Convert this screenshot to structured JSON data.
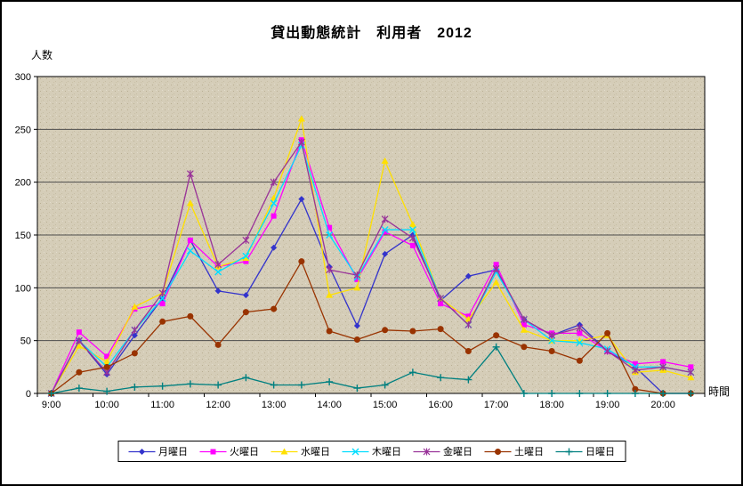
{
  "chart_data": {
    "type": "line",
    "title": "貸出動態統計　利用者　2012",
    "ylabel": "人数",
    "xlabel": "時間",
    "ylim": [
      0,
      300
    ],
    "y_tick_step": 50,
    "x_label_every": 2,
    "grid": "horizontal",
    "legend_position": "bottom",
    "plot_bg": "#d5cdb8",
    "categories": [
      "9:00",
      "9:30",
      "10:00",
      "10:30",
      "11:00",
      "11:30",
      "12:00",
      "12:30",
      "13:00",
      "13:30",
      "14:00",
      "14:30",
      "15:00",
      "15:30",
      "16:00",
      "16:30",
      "17:00",
      "17:30",
      "18:00",
      "18:30",
      "19:00",
      "19:30",
      "20:00",
      "20:30"
    ],
    "series": [
      {
        "name": "月曜日",
        "color": "#3333CC",
        "marker": "diamond",
        "values": [
          0,
          50,
          18,
          55,
          90,
          145,
          97,
          93,
          138,
          184,
          120,
          64,
          132,
          150,
          88,
          111,
          117,
          70,
          55,
          65,
          40,
          25,
          0,
          0
        ]
      },
      {
        "name": "火曜日",
        "color": "#FF00FF",
        "marker": "square",
        "values": [
          0,
          58,
          35,
          80,
          85,
          145,
          120,
          125,
          168,
          240,
          157,
          108,
          153,
          140,
          85,
          73,
          122,
          65,
          57,
          57,
          40,
          28,
          30,
          25
        ]
      },
      {
        "name": "水曜日",
        "color": "#FFE000",
        "marker": "triangle",
        "values": [
          0,
          45,
          30,
          82,
          95,
          180,
          120,
          128,
          185,
          260,
          93,
          100,
          220,
          160,
          90,
          70,
          105,
          60,
          50,
          50,
          55,
          20,
          22,
          15
        ]
      },
      {
        "name": "木曜日",
        "color": "#00DDFF",
        "marker": "x",
        "values": [
          0,
          50,
          25,
          60,
          90,
          135,
          115,
          130,
          180,
          235,
          150,
          110,
          155,
          155,
          90,
          65,
          115,
          70,
          50,
          48,
          42,
          25,
          25,
          20
        ]
      },
      {
        "name": "金曜日",
        "color": "#993399",
        "marker": "asterisk",
        "values": [
          0,
          50,
          20,
          60,
          95,
          208,
          122,
          145,
          200,
          238,
          117,
          112,
          165,
          147,
          90,
          65,
          118,
          70,
          55,
          62,
          40,
          22,
          25,
          20
        ]
      },
      {
        "name": "土曜日",
        "color": "#993300",
        "marker": "circle",
        "values": [
          0,
          20,
          25,
          38,
          68,
          73,
          46,
          77,
          80,
          125,
          59,
          51,
          60,
          59,
          61,
          40,
          55,
          44,
          40,
          31,
          57,
          4,
          0,
          0
        ]
      },
      {
        "name": "日曜日",
        "color": "#008080",
        "marker": "plus",
        "values": [
          0,
          5,
          2,
          6,
          7,
          9,
          8,
          15,
          8,
          8,
          11,
          5,
          8,
          20,
          15,
          13,
          44,
          0,
          0,
          0,
          0,
          0,
          0,
          0
        ]
      }
    ]
  }
}
